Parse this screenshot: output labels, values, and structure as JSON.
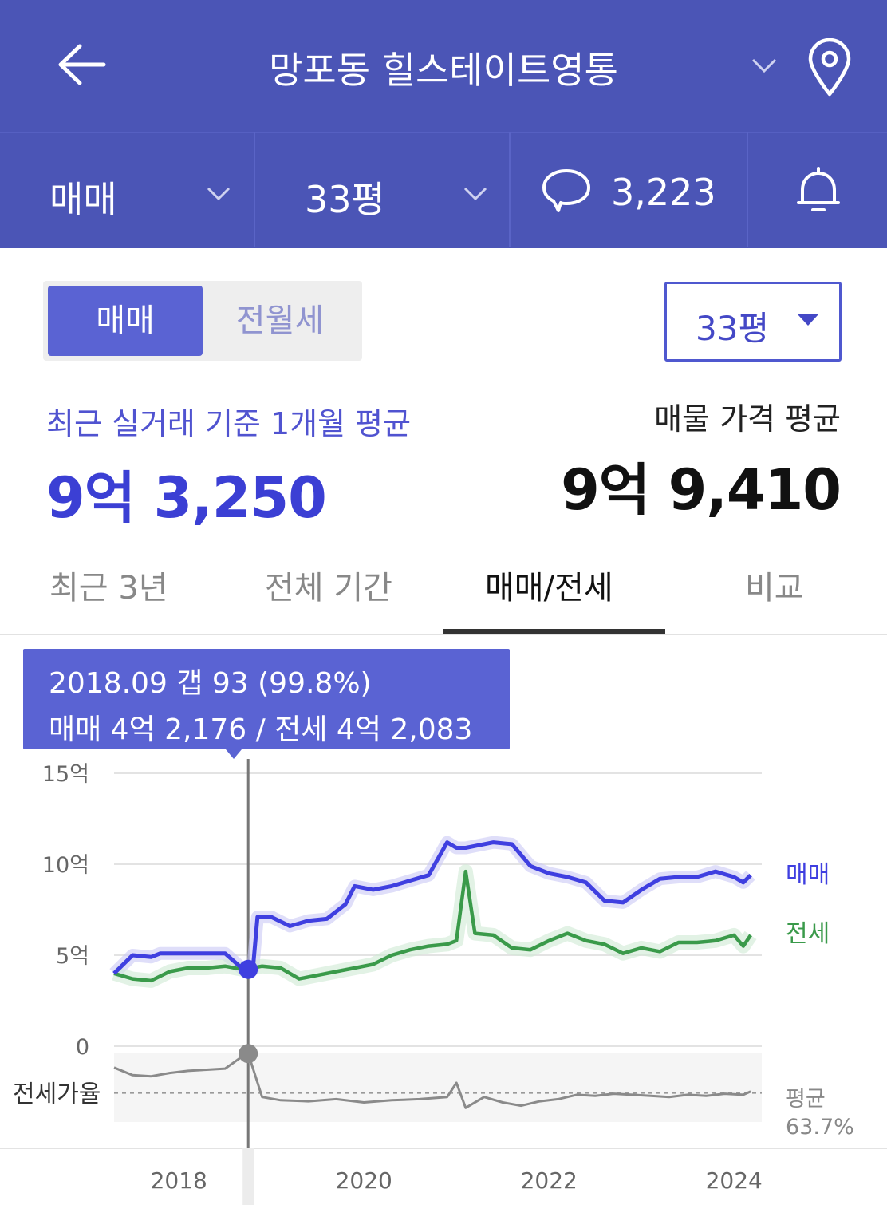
{
  "header": {
    "title": "망포동 힐스테이트영통"
  },
  "filter_bar": {
    "trade_type": "매매",
    "size": "33평",
    "comment_count": "3,223"
  },
  "toggle": {
    "active": "매매",
    "inactive": "전월세"
  },
  "size_dropdown": {
    "value": "33평"
  },
  "summary": {
    "recent_label": "최근 실거래 기준 1개월 평균",
    "recent_price": "9억 3,250",
    "listing_label": "매물 가격 평균",
    "listing_price": "9억 9,410"
  },
  "tabs": [
    {
      "label": "최근 3년"
    },
    {
      "label": "전체 기간"
    },
    {
      "label": "매매/전세"
    },
    {
      "label": "비교"
    }
  ],
  "active_tab": 2,
  "tooltip": {
    "line1": "2018.09  갭 93 (99.8%)",
    "line2": "매매 4억 2,176 / 전세 4억 2,083"
  },
  "colors": {
    "header_bg": "#4b55b6",
    "accent": "#5a63d3",
    "sale_line": "#3f3fe0",
    "jeonse_line": "#3a9a4a",
    "ratio_line": "#8a8a8a"
  },
  "chart_data": {
    "type": "line",
    "ylim": [
      0,
      15
    ],
    "yticks": [
      "0",
      "5억",
      "10억",
      "15억"
    ],
    "xticks": [
      "2018",
      "2020",
      "2022",
      "2024"
    ],
    "series": [
      {
        "name": "매매",
        "x": [
          2017.3,
          2017.5,
          2017.7,
          2017.8,
          2018.0,
          2018.3,
          2018.5,
          2018.7,
          2018.8,
          2018.85,
          2019.0,
          2019.2,
          2019.4,
          2019.6,
          2019.8,
          2019.9,
          2020.1,
          2020.3,
          2020.5,
          2020.7,
          2020.9,
          2021.0,
          2021.1,
          2021.2,
          2021.4,
          2021.6,
          2021.8,
          2022.0,
          2022.2,
          2022.4,
          2022.6,
          2022.8,
          2023.0,
          2023.2,
          2023.4,
          2023.6,
          2023.8,
          2024.0,
          2024.1,
          2024.18
        ],
        "values": [
          4.0,
          5.0,
          4.9,
          5.1,
          5.1,
          5.1,
          5.1,
          4.2,
          4.22,
          7.1,
          7.1,
          6.6,
          6.9,
          7.0,
          7.8,
          8.8,
          8.6,
          8.8,
          9.1,
          9.4,
          11.2,
          10.9,
          10.9,
          11.0,
          11.2,
          11.1,
          9.9,
          9.5,
          9.3,
          9.0,
          8.0,
          7.9,
          8.6,
          9.2,
          9.3,
          9.3,
          9.6,
          9.3,
          9.0,
          9.4
        ]
      },
      {
        "name": "전세",
        "x": [
          2017.3,
          2017.5,
          2017.7,
          2017.9,
          2018.1,
          2018.3,
          2018.5,
          2018.7,
          2018.9,
          2019.1,
          2019.3,
          2019.5,
          2019.7,
          2019.9,
          2020.1,
          2020.3,
          2020.5,
          2020.7,
          2020.9,
          2021.0,
          2021.1,
          2021.2,
          2021.4,
          2021.6,
          2021.8,
          2022.0,
          2022.2,
          2022.4,
          2022.6,
          2022.8,
          2023.0,
          2023.2,
          2023.4,
          2023.6,
          2023.8,
          2024.0,
          2024.1,
          2024.18
        ],
        "values": [
          4.0,
          3.7,
          3.6,
          4.1,
          4.3,
          4.3,
          4.4,
          4.2,
          4.4,
          4.3,
          3.7,
          3.9,
          4.1,
          4.3,
          4.5,
          5.0,
          5.3,
          5.5,
          5.6,
          5.8,
          9.6,
          6.2,
          6.1,
          5.4,
          5.3,
          5.8,
          6.2,
          5.8,
          5.6,
          5.1,
          5.4,
          5.2,
          5.7,
          5.7,
          5.8,
          6.1,
          5.5,
          6.1
        ]
      }
    ],
    "series_labels": {
      "sale": "매매",
      "jeonse": "전세"
    },
    "ratio_panel": {
      "label": "전세가율",
      "avg_label": "평균",
      "avg_value": "63.7%",
      "x": [
        2017.3,
        2017.5,
        2017.7,
        2017.9,
        2018.1,
        2018.3,
        2018.5,
        2018.7,
        2018.75,
        2018.9,
        2019.1,
        2019.4,
        2019.7,
        2020.0,
        2020.3,
        2020.6,
        2020.9,
        2021.0,
        2021.1,
        2021.3,
        2021.5,
        2021.7,
        2021.9,
        2022.1,
        2022.3,
        2022.5,
        2022.7,
        2022.9,
        2023.1,
        2023.3,
        2023.5,
        2023.7,
        2023.9,
        2024.1,
        2024.18
      ],
      "values": [
        87,
        80,
        79,
        82,
        84,
        85,
        86,
        98,
        99.8,
        60,
        57,
        56,
        58,
        55,
        57,
        58,
        60,
        73,
        50,
        60,
        55,
        52,
        56,
        58,
        62,
        61,
        63,
        62,
        61,
        60,
        62,
        61,
        63,
        62,
        65
      ]
    },
    "selected_point": {
      "date": "2018.09",
      "x": 2018.75
    }
  }
}
